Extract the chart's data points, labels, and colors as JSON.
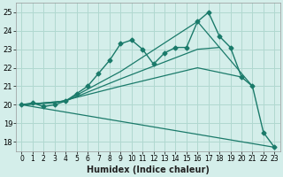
{
  "xlabel": "Humidex (Indice chaleur)",
  "ylabel": "",
  "bg_color": "#d4eeea",
  "grid_color": "#b0d8d0",
  "line_color": "#1a7a6a",
  "xlim": [
    -0.5,
    23.5
  ],
  "ylim": [
    17.5,
    25.5
  ],
  "yticks": [
    18,
    19,
    20,
    21,
    22,
    23,
    24,
    25
  ],
  "xticks": [
    0,
    1,
    2,
    3,
    4,
    5,
    6,
    7,
    8,
    9,
    10,
    11,
    12,
    13,
    14,
    15,
    16,
    17,
    18,
    19,
    20,
    21,
    22,
    23
  ],
  "main_x": [
    0,
    1,
    2,
    3,
    4,
    5,
    6,
    7,
    8,
    9,
    10,
    11,
    12,
    13,
    14,
    15,
    16,
    17,
    18,
    19,
    20,
    21,
    22,
    23
  ],
  "main_y": [
    20.0,
    20.1,
    19.9,
    20.0,
    20.2,
    20.6,
    21.0,
    21.7,
    22.4,
    23.3,
    23.5,
    23.0,
    22.2,
    22.8,
    23.1,
    23.1,
    24.5,
    25.0,
    23.7,
    23.1,
    21.5,
    21.0,
    18.5,
    17.7
  ],
  "fan_lines": [
    {
      "x": [
        0,
        3,
        9,
        16,
        20
      ],
      "y": [
        20.0,
        20.1,
        21.0,
        22.0,
        21.5
      ]
    },
    {
      "x": [
        0,
        4,
        9,
        16,
        18
      ],
      "y": [
        20.0,
        20.2,
        21.4,
        23.0,
        23.1
      ]
    },
    {
      "x": [
        0,
        4,
        9,
        16,
        21
      ],
      "y": [
        20.0,
        20.2,
        21.8,
        24.5,
        21.0
      ]
    },
    {
      "x": [
        0,
        23
      ],
      "y": [
        20.0,
        17.7
      ]
    }
  ]
}
